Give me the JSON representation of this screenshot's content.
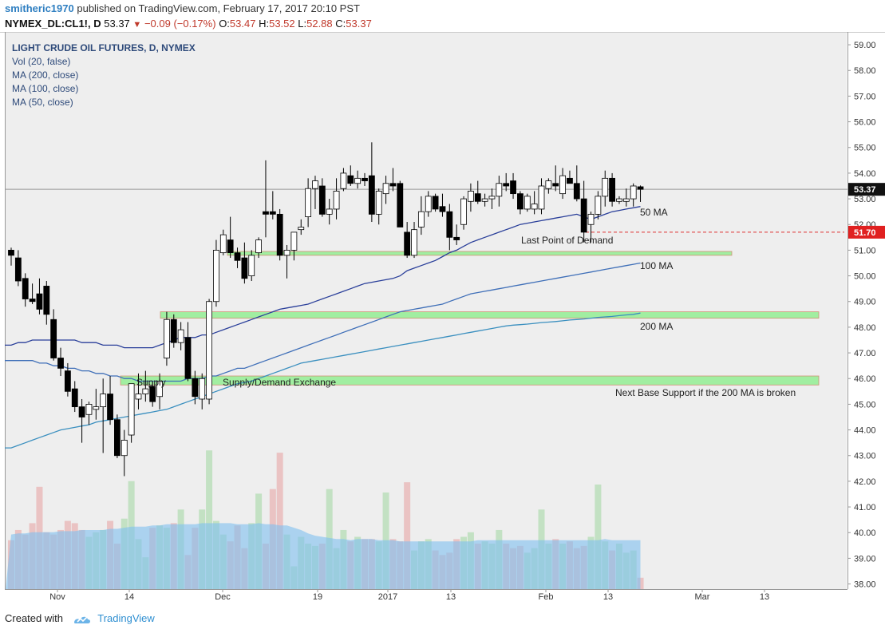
{
  "header": {
    "user": "smitheric1970",
    "published_text": "published on TradingView.com, February 17, 2017 20:10 PST",
    "symbol": "NYMEX_DL:CL1!, D",
    "last": "53.37",
    "change": "−0.09 (−0.17%)",
    "open_label": "O:",
    "open": "53.47",
    "high_label": "H:",
    "high": "53.52",
    "low_label": "L:",
    "low": "52.88",
    "close_label": "C:",
    "close": "53.37"
  },
  "legend": {
    "title": "LIGHT CRUDE OIL FUTURES, D, NYMEX",
    "items": [
      "Vol (20, false)",
      "MA (200, close)",
      "MA (100, close)",
      "MA (50, close)"
    ]
  },
  "footer": {
    "created_with": "Created with",
    "brand": "TradingView"
  },
  "colors": {
    "background": "#eeeeee",
    "up_candle": "#ffffff",
    "down_candle": "#000000",
    "ma50": "#2a3f9a",
    "ma100": "#3f6fb8",
    "ma200": "#3a8fbf",
    "zone_fill": "#99ee99",
    "zone_border": "#cc8866",
    "vol_up": "#b8ddb8",
    "vol_down": "#e8b8b8",
    "vol_ma": "#7ec0f0",
    "price_line": "#999999",
    "demand_line": "#e03030"
  },
  "chart_data": {
    "type": "candlestick",
    "title": "LIGHT CRUDE OIL FUTURES, D, NYMEX",
    "y_axis": {
      "ticks": [
        "38.00",
        "39.00",
        "40.00",
        "41.00",
        "42.00",
        "43.00",
        "44.00",
        "45.00",
        "46.00",
        "47.00",
        "48.00",
        "49.00",
        "50.00",
        "51.00",
        "52.00",
        "53.00",
        "54.00",
        "55.00",
        "56.00",
        "57.00",
        "58.00",
        "59.00"
      ],
      "ylim": [
        37.8,
        59.5
      ]
    },
    "x_axis": {
      "ticks": [
        "Nov",
        "14",
        "Dec",
        "19",
        "2017",
        "13",
        "Feb",
        "13",
        "Mar",
        "13"
      ]
    },
    "current_price_label": "53.37",
    "demand_price_label": "51.70",
    "demand_price": 51.7,
    "annotations": [
      "50 MA",
      "100 MA",
      "200 MA",
      "Last Point of Demand",
      "Supply",
      "Supply/Demand Exchange",
      "Next Base Support if the 200 MA is broken"
    ],
    "zones": [
      {
        "name": "zone-51",
        "top": 50.95,
        "bottom": 50.8
      },
      {
        "name": "zone-48",
        "top": 48.6,
        "bottom": 48.35
      },
      {
        "name": "zone-46",
        "top": 46.1,
        "bottom": 45.75
      }
    ],
    "candles": [
      {
        "o": 51.0,
        "h": 51.1,
        "l": 50.4,
        "c": 50.8
      },
      {
        "o": 50.7,
        "h": 51.0,
        "l": 49.6,
        "c": 49.8
      },
      {
        "o": 49.9,
        "h": 50.1,
        "l": 48.8,
        "c": 49.1
      },
      {
        "o": 49.1,
        "h": 49.7,
        "l": 48.9,
        "c": 49.0
      },
      {
        "o": 49.3,
        "h": 49.9,
        "l": 48.5,
        "c": 48.7
      },
      {
        "o": 49.6,
        "h": 49.8,
        "l": 48.1,
        "c": 48.5
      },
      {
        "o": 48.3,
        "h": 48.7,
        "l": 46.7,
        "c": 46.8
      },
      {
        "o": 46.8,
        "h": 47.2,
        "l": 46.1,
        "c": 46.4
      },
      {
        "o": 46.3,
        "h": 46.6,
        "l": 45.3,
        "c": 45.5
      },
      {
        "o": 45.6,
        "h": 45.9,
        "l": 44.7,
        "c": 44.9
      },
      {
        "o": 44.9,
        "h": 45.2,
        "l": 43.5,
        "c": 44.5
      },
      {
        "o": 44.6,
        "h": 45.1,
        "l": 44.2,
        "c": 45.0
      },
      {
        "o": 44.8,
        "h": 45.6,
        "l": 44.4,
        "c": 44.9
      },
      {
        "o": 44.9,
        "h": 46.0,
        "l": 43.1,
        "c": 45.4
      },
      {
        "o": 45.4,
        "h": 46.1,
        "l": 44.2,
        "c": 44.4
      },
      {
        "o": 44.4,
        "h": 44.6,
        "l": 42.9,
        "c": 43.0
      },
      {
        "o": 43.0,
        "h": 44.0,
        "l": 42.2,
        "c": 43.6
      },
      {
        "o": 43.8,
        "h": 45.8,
        "l": 43.5,
        "c": 45.8
      },
      {
        "o": 45.2,
        "h": 46.2,
        "l": 44.8,
        "c": 45.4
      },
      {
        "o": 45.4,
        "h": 46.3,
        "l": 45.1,
        "c": 45.6
      },
      {
        "o": 45.7,
        "h": 45.9,
        "l": 44.9,
        "c": 45.1
      },
      {
        "o": 45.3,
        "h": 46.2,
        "l": 44.8,
        "c": 45.9
      },
      {
        "o": 46.8,
        "h": 48.6,
        "l": 46.5,
        "c": 48.3
      },
      {
        "o": 48.3,
        "h": 48.5,
        "l": 47.2,
        "c": 47.4
      },
      {
        "o": 47.4,
        "h": 48.2,
        "l": 47.1,
        "c": 47.9
      },
      {
        "o": 47.6,
        "h": 48.2,
        "l": 45.9,
        "c": 46.0
      },
      {
        "o": 46.0,
        "h": 46.3,
        "l": 45.0,
        "c": 45.3
      },
      {
        "o": 45.2,
        "h": 46.2,
        "l": 44.8,
        "c": 46.0
      },
      {
        "o": 45.2,
        "h": 49.1,
        "l": 45.0,
        "c": 49.0
      },
      {
        "o": 49.0,
        "h": 51.4,
        "l": 48.8,
        "c": 51.0
      },
      {
        "o": 50.9,
        "h": 51.8,
        "l": 50.8,
        "c": 51.6
      },
      {
        "o": 51.4,
        "h": 52.3,
        "l": 50.7,
        "c": 50.9
      },
      {
        "o": 50.9,
        "h": 51.1,
        "l": 50.3,
        "c": 50.6
      },
      {
        "o": 50.7,
        "h": 51.3,
        "l": 49.7,
        "c": 49.9
      },
      {
        "o": 50.0,
        "h": 51.0,
        "l": 49.8,
        "c": 50.8
      },
      {
        "o": 50.9,
        "h": 51.5,
        "l": 50.7,
        "c": 51.4
      },
      {
        "o": 52.5,
        "h": 54.5,
        "l": 51.5,
        "c": 52.4
      },
      {
        "o": 52.5,
        "h": 53.3,
        "l": 52.2,
        "c": 52.4
      },
      {
        "o": 52.4,
        "h": 52.6,
        "l": 50.6,
        "c": 50.8
      },
      {
        "o": 50.8,
        "h": 51.2,
        "l": 49.9,
        "c": 51.0
      },
      {
        "o": 51.0,
        "h": 51.7,
        "l": 50.6,
        "c": 51.7
      },
      {
        "o": 51.8,
        "h": 52.2,
        "l": 51.6,
        "c": 51.9
      },
      {
        "o": 52.3,
        "h": 53.8,
        "l": 51.9,
        "c": 53.4
      },
      {
        "o": 53.4,
        "h": 53.9,
        "l": 52.6,
        "c": 53.7
      },
      {
        "o": 53.5,
        "h": 53.8,
        "l": 52.3,
        "c": 52.4
      },
      {
        "o": 52.4,
        "h": 53.0,
        "l": 52.0,
        "c": 52.6
      },
      {
        "o": 52.6,
        "h": 53.8,
        "l": 52.2,
        "c": 53.3
      },
      {
        "o": 53.4,
        "h": 54.2,
        "l": 53.3,
        "c": 54.0
      },
      {
        "o": 53.9,
        "h": 54.3,
        "l": 53.5,
        "c": 53.6
      },
      {
        "o": 53.6,
        "h": 54.1,
        "l": 53.4,
        "c": 53.8
      },
      {
        "o": 53.8,
        "h": 54.0,
        "l": 53.5,
        "c": 53.7
      },
      {
        "o": 53.9,
        "h": 55.2,
        "l": 52.1,
        "c": 52.4
      },
      {
        "o": 52.4,
        "h": 53.4,
        "l": 52.0,
        "c": 53.3
      },
      {
        "o": 53.2,
        "h": 53.9,
        "l": 52.8,
        "c": 53.6
      },
      {
        "o": 53.6,
        "h": 54.2,
        "l": 53.3,
        "c": 53.5
      },
      {
        "o": 53.6,
        "h": 53.7,
        "l": 51.9,
        "c": 51.9
      },
      {
        "o": 51.7,
        "h": 52.1,
        "l": 50.7,
        "c": 50.8
      },
      {
        "o": 50.8,
        "h": 52.1,
        "l": 50.7,
        "c": 51.8
      },
      {
        "o": 51.9,
        "h": 53.1,
        "l": 51.6,
        "c": 52.5
      },
      {
        "o": 52.5,
        "h": 53.3,
        "l": 52.3,
        "c": 53.1
      },
      {
        "o": 53.1,
        "h": 53.2,
        "l": 52.5,
        "c": 52.6
      },
      {
        "o": 52.7,
        "h": 53.2,
        "l": 52.3,
        "c": 52.5
      },
      {
        "o": 52.5,
        "h": 52.8,
        "l": 51.0,
        "c": 51.5
      },
      {
        "o": 51.5,
        "h": 52.0,
        "l": 51.2,
        "c": 51.4
      },
      {
        "o": 52.0,
        "h": 53.1,
        "l": 51.8,
        "c": 53.0
      },
      {
        "o": 52.9,
        "h": 53.6,
        "l": 52.5,
        "c": 53.3
      },
      {
        "o": 53.2,
        "h": 53.7,
        "l": 52.8,
        "c": 52.9
      },
      {
        "o": 52.9,
        "h": 53.2,
        "l": 52.7,
        "c": 53.0
      },
      {
        "o": 53.0,
        "h": 53.4,
        "l": 52.6,
        "c": 53.1
      },
      {
        "o": 53.1,
        "h": 53.9,
        "l": 52.7,
        "c": 53.6
      },
      {
        "o": 53.6,
        "h": 54.0,
        "l": 53.3,
        "c": 53.5
      },
      {
        "o": 53.7,
        "h": 54.0,
        "l": 53.0,
        "c": 53.2
      },
      {
        "o": 53.2,
        "h": 53.3,
        "l": 52.4,
        "c": 52.6
      },
      {
        "o": 52.6,
        "h": 53.2,
        "l": 52.5,
        "c": 53.1
      },
      {
        "o": 52.6,
        "h": 53.3,
        "l": 52.4,
        "c": 52.8
      },
      {
        "o": 52.6,
        "h": 53.8,
        "l": 52.4,
        "c": 53.5
      },
      {
        "o": 53.4,
        "h": 53.8,
        "l": 53.2,
        "c": 53.7
      },
      {
        "o": 53.6,
        "h": 54.3,
        "l": 53.3,
        "c": 53.5
      },
      {
        "o": 53.2,
        "h": 54.2,
        "l": 53.0,
        "c": 53.9
      },
      {
        "o": 53.8,
        "h": 54.1,
        "l": 53.6,
        "c": 53.6
      },
      {
        "o": 53.6,
        "h": 54.3,
        "l": 52.9,
        "c": 53.0
      },
      {
        "o": 53.0,
        "h": 53.7,
        "l": 51.3,
        "c": 51.7
      },
      {
        "o": 52.0,
        "h": 52.5,
        "l": 51.3,
        "c": 52.4
      },
      {
        "o": 52.4,
        "h": 53.3,
        "l": 52.2,
        "c": 53.1
      },
      {
        "o": 53.1,
        "h": 54.1,
        "l": 52.7,
        "c": 53.8
      },
      {
        "o": 53.8,
        "h": 54.0,
        "l": 52.7,
        "c": 52.9
      },
      {
        "o": 52.9,
        "h": 53.1,
        "l": 52.8,
        "c": 53.0
      },
      {
        "o": 52.9,
        "h": 53.4,
        "l": 52.7,
        "c": 53.0
      },
      {
        "o": 53.0,
        "h": 53.6,
        "l": 52.7,
        "c": 53.5
      },
      {
        "o": 53.47,
        "h": 53.52,
        "l": 52.88,
        "c": 53.37
      }
    ],
    "volume_ylim": [
      0,
      1.0
    ],
    "volumes": [
      0.43,
      0.52,
      0.48,
      0.58,
      0.44,
      0.5,
      0.48,
      0.52,
      0.6,
      0.48,
      0.52,
      0.46,
      0.5,
      0.52,
      0.6,
      0.4,
      0.62,
      0.6,
      0.44,
      0.28,
      0.54,
      0.56,
      0.54,
      0.58,
      0.42,
      0.3,
      0.54,
      0.7,
      0.9,
      0.6,
      0.48,
      0.42,
      0.56,
      0.36,
      0.58,
      0.54,
      0.4,
      0.46,
      0.42,
      0.48,
      0.2,
      0.46,
      0.4,
      0.38,
      0.4,
      0.2,
      0.36,
      0.52,
      0.42,
      0.46,
      0.44,
      0.44,
      0.42,
      0.38,
      0.44,
      0.42,
      0.38,
      0.34,
      0.42,
      0.44,
      0.34,
      0.3,
      0.32,
      0.44,
      0.46,
      0.5,
      0.4,
      0.42,
      0.4,
      0.52,
      0.4,
      0.36,
      0.38,
      0.32,
      0.36,
      0.44,
      0.4,
      0.44,
      0.4,
      0.42,
      0.36,
      0.38,
      0.46,
      0.44,
      0.42,
      0.34,
      0.4,
      0.32,
      0.34,
      0.1
    ],
    "volume_extremes": [
      {
        "i": 28,
        "v": 1.22
      },
      {
        "i": 38,
        "v": 1.2
      },
      {
        "i": 17,
        "v": 0.95
      },
      {
        "i": 45,
        "v": 0.88
      },
      {
        "i": 9,
        "v": 0.58
      },
      {
        "i": 24,
        "v": 0.7
      },
      {
        "i": 4,
        "v": 0.9
      },
      {
        "i": 35,
        "v": 0.84
      },
      {
        "i": 37,
        "v": 0.88
      },
      {
        "i": 53,
        "v": 0.85
      },
      {
        "i": 56,
        "v": 0.94
      },
      {
        "i": 75,
        "v": 0.7
      },
      {
        "i": 83,
        "v": 0.92
      }
    ],
    "vol_ma": [
      0.48,
      0.49,
      0.49,
      0.5,
      0.5,
      0.5,
      0.5,
      0.51,
      0.51,
      0.51,
      0.52,
      0.52,
      0.52,
      0.52,
      0.53,
      0.53,
      0.54,
      0.55,
      0.55,
      0.55,
      0.56,
      0.56,
      0.57,
      0.57,
      0.57,
      0.57,
      0.57,
      0.58,
      0.58,
      0.58,
      0.58,
      0.58,
      0.57,
      0.57,
      0.57,
      0.58,
      0.57,
      0.57,
      0.56,
      0.56,
      0.54,
      0.52,
      0.49,
      0.47,
      0.46,
      0.45,
      0.44,
      0.44,
      0.43,
      0.44,
      0.44,
      0.44,
      0.43,
      0.43,
      0.43,
      0.42,
      0.42,
      0.42,
      0.42,
      0.42,
      0.42,
      0.42,
      0.42,
      0.42,
      0.42,
      0.42,
      0.43,
      0.43,
      0.43,
      0.43,
      0.43,
      0.43,
      0.43,
      0.43,
      0.43,
      0.43,
      0.43,
      0.43,
      0.43,
      0.43,
      0.43,
      0.43,
      0.43,
      0.43,
      0.44,
      0.43,
      0.43,
      0.43,
      0.43,
      0.43
    ],
    "ma50": [
      47.3,
      47.4,
      47.4,
      47.5,
      47.5,
      47.5,
      47.5,
      47.5,
      47.5,
      47.5,
      47.4,
      47.4,
      47.4,
      47.3,
      47.3,
      47.3,
      47.2,
      47.2,
      47.2,
      47.2,
      47.2,
      47.3,
      47.4,
      47.5,
      47.6,
      47.6,
      47.6,
      47.7,
      47.7,
      47.8,
      47.9,
      48.0,
      48.1,
      48.2,
      48.3,
      48.4,
      48.5,
      48.6,
      48.7,
      48.75,
      48.8,
      48.85,
      48.9,
      49.0,
      49.1,
      49.2,
      49.3,
      49.4,
      49.5,
      49.6,
      49.7,
      49.75,
      49.8,
      49.85,
      49.9,
      50.0,
      50.2,
      50.3,
      50.4,
      50.5,
      50.6,
      50.75,
      50.9,
      51.0,
      51.15,
      51.3,
      51.4,
      51.5,
      51.6,
      51.7,
      51.8,
      51.9,
      52.0,
      52.05,
      52.1,
      52.15,
      52.2,
      52.25,
      52.3,
      52.35,
      52.4,
      52.3,
      52.2,
      52.3,
      52.4,
      52.5,
      52.55,
      52.6,
      52.65,
      52.7
    ],
    "ma100": [
      46.7,
      46.7,
      46.7,
      46.7,
      46.6,
      46.6,
      46.5,
      46.5,
      46.4,
      46.4,
      46.3,
      46.3,
      46.2,
      46.2,
      46.1,
      46.1,
      46.0,
      46.0,
      45.9,
      45.9,
      45.9,
      45.9,
      45.9,
      45.9,
      45.9,
      46.0,
      46.0,
      46.0,
      46.1,
      46.1,
      46.2,
      46.3,
      46.4,
      46.4,
      46.5,
      46.6,
      46.7,
      46.8,
      46.9,
      47.0,
      47.1,
      47.2,
      47.3,
      47.4,
      47.5,
      47.6,
      47.7,
      47.8,
      47.9,
      48.0,
      48.1,
      48.2,
      48.3,
      48.4,
      48.5,
      48.6,
      48.65,
      48.7,
      48.75,
      48.8,
      48.85,
      48.9,
      49.0,
      49.1,
      49.2,
      49.3,
      49.35,
      49.4,
      49.45,
      49.5,
      49.55,
      49.6,
      49.65,
      49.7,
      49.75,
      49.8,
      49.85,
      49.9,
      49.95,
      50.0,
      50.05,
      50.1,
      50.15,
      50.2,
      50.25,
      50.3,
      50.35,
      50.4,
      50.45,
      50.5
    ],
    "ma200": [
      43.3,
      43.4,
      43.5,
      43.6,
      43.7,
      43.8,
      43.9,
      44.0,
      44.05,
      44.1,
      44.15,
      44.2,
      44.3,
      44.35,
      44.4,
      44.45,
      44.5,
      44.55,
      44.6,
      44.65,
      44.7,
      44.75,
      44.8,
      44.9,
      45.0,
      45.1,
      45.2,
      45.3,
      45.4,
      45.5,
      45.6,
      45.7,
      45.8,
      45.85,
      45.9,
      46.0,
      46.1,
      46.2,
      46.3,
      46.4,
      46.5,
      46.6,
      46.65,
      46.7,
      46.75,
      46.8,
      46.85,
      46.9,
      46.95,
      47.0,
      47.05,
      47.1,
      47.15,
      47.2,
      47.25,
      47.3,
      47.35,
      47.4,
      47.45,
      47.5,
      47.55,
      47.6,
      47.65,
      47.7,
      47.75,
      47.8,
      47.85,
      47.9,
      47.95,
      48.0,
      48.05,
      48.08,
      48.1,
      48.12,
      48.15,
      48.18,
      48.2,
      48.22,
      48.25,
      48.28,
      48.3,
      48.32,
      48.35,
      48.38,
      48.4,
      48.42,
      48.45,
      48.48,
      48.5,
      48.55
    ]
  }
}
